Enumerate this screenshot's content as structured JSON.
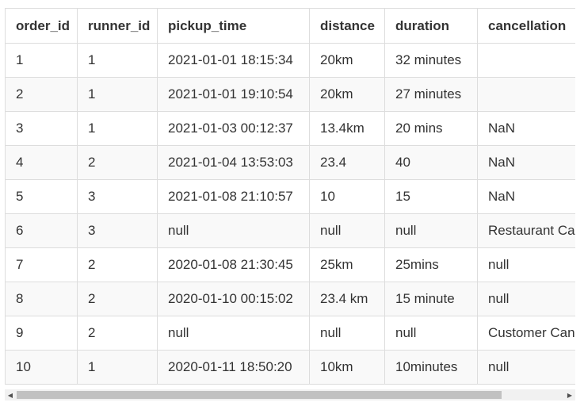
{
  "table": {
    "columns": [
      "order_id",
      "runner_id",
      "pickup_time",
      "distance",
      "duration",
      "cancellation"
    ],
    "rows": [
      [
        "1",
        "1",
        "2021-01-01 18:15:34",
        "20km",
        "32 minutes",
        ""
      ],
      [
        "2",
        "1",
        "2021-01-01 19:10:54",
        "20km",
        "27 minutes",
        ""
      ],
      [
        "3",
        "1",
        "2021-01-03 00:12:37",
        "13.4km",
        "20 mins",
        "NaN"
      ],
      [
        "4",
        "2",
        "2021-01-04 13:53:03",
        "23.4",
        "40",
        "NaN"
      ],
      [
        "5",
        "3",
        "2021-01-08 21:10:57",
        "10",
        "15",
        "NaN"
      ],
      [
        "6",
        "3",
        "null",
        "null",
        "null",
        "Restaurant Cancellation"
      ],
      [
        "7",
        "2",
        "2020-01-08 21:30:45",
        "25km",
        "25mins",
        "null"
      ],
      [
        "8",
        "2",
        "2020-01-10 00:15:02",
        "23.4 km",
        "15 minute",
        "null"
      ],
      [
        "9",
        "2",
        "null",
        "null",
        "null",
        "Customer Cancellation"
      ],
      [
        "10",
        "1",
        "2020-01-11 18:50:20",
        "10km",
        "10minutes",
        "null"
      ]
    ]
  },
  "scrollbar": {
    "left_arrow_icon": "triangle-left-icon",
    "right_arrow_icon": "triangle-right-icon",
    "left_arrow_glyph": "◀",
    "right_arrow_glyph": "▶",
    "scroll_position_fraction": 0.0
  }
}
